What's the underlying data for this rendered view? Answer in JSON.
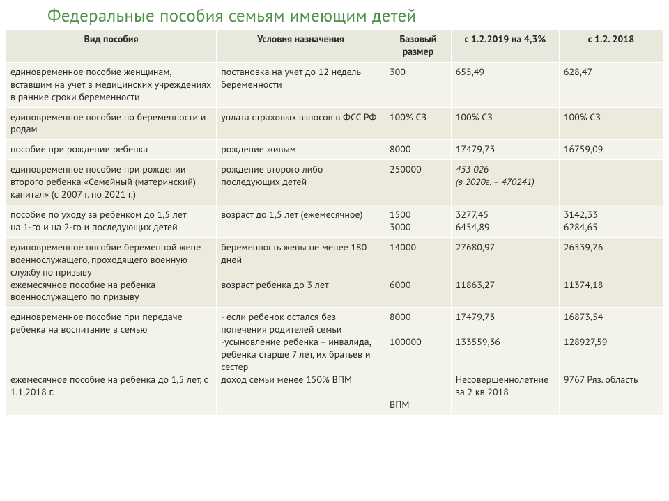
{
  "title": "Федеральные пособия семьям имеющим детей",
  "columns": {
    "c1": "Вид пособия",
    "c2": "Условия назначения",
    "c3": "Базовый размер",
    "c4": "с 1.2.2019 на 4,3%",
    "c5": "с 1.2. 2018"
  },
  "rows": [
    {
      "type": "единовременное пособие женщинам, вставшим на учет в медицинских учреждениях в ранние сроки беременности",
      "cond": "постановка на учет до 12 недель беременности",
      "base": "300",
      "v2019": "655,49",
      "v2018": "628,47"
    },
    {
      "type": "единовременное пособие по беременности и родам",
      "cond": "уплата страховых взносов  в ФСС РФ",
      "base": "100% СЗ",
      "v2019": "100% СЗ",
      "v2018": "100% СЗ"
    },
    {
      "type": "пособие при рождении  ребенка",
      "cond": "рождение живым",
      "base": "8000",
      "v2019": "17479,73",
      "v2018": "16759,09"
    },
    {
      "type": "единовременное пособие при рождении второго ребенка «Семейный (материнский) капитал» (с 2007 г. по 2021 г.)",
      "cond": "рождение второго  либо последующих детей",
      "base": "250000",
      "v2019": "453 026\n (в 2020г. – 470241)",
      "v2018": ""
    },
    {
      "type": "пособие по уходу за ребенком до 1,5 лет\nна 1-го и на 2-го и последующих детей",
      "cond": "возраст до 1,5 лет (ежемесячное)",
      "base": "1500\n3000",
      "v2019": "3277,45\n6454,89",
      "v2018": "3142,33\n6284,65"
    },
    {
      "type": "единовременное пособие беременной жене военнослужащего, проходящего военную службу по призыву\nежемесячное пособие на ребенка военнослужащего по призыву",
      "cond": "беременность жены не менее 180 дней\n\nвозраст ребенка до 3 лет",
      "base": "14000\n\n\n6000",
      "v2019": "27680,97\n\n\n11863,27",
      "v2018": "26539,76\n\n\n11374,18"
    },
    {
      "type": "единовременное пособие при передаче ребенка на воспитание в семью\n\n\n\nежемесячное пособие на ребенка до 1,5 лет, с 1.1.2018 г.",
      "cond": "- если ребенок остался без попечения родителей семьи\n-усыновление ребенка – инвалида, ребенка старше 7 лет, их братьев и сестер\nдоход семьи менее 150% ВПМ",
      "base": "8000\n\n100000\n\n\n\n\nВПМ",
      "v2019": "17479,73\n\n133559,36\n\n\nНесовершеннолетние за 2 кв 2018",
      "v2018": "16873,54\n\n128927,59\n\n\n9767 Ряз. область"
    }
  ],
  "colors": {
    "title": "#4f9148",
    "odd": "#f4f3eb",
    "even": "#eceadc",
    "header": "#e9e8dd",
    "rule": "#ffffff",
    "text": "#2a2a2a"
  },
  "fontsizes": {
    "title": 25,
    "header": 14,
    "cell": 14
  }
}
